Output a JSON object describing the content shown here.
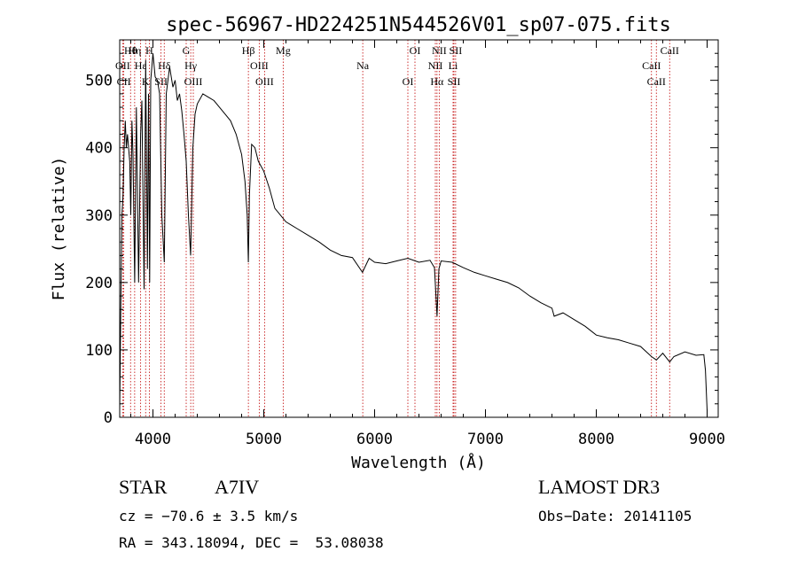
{
  "chart_data": {
    "type": "line",
    "title": "spec-56967-HD224251N544526V01_sp07-075.fits",
    "xlabel": "Wavelength (Å)",
    "ylabel": "Flux (relative)",
    "xlim": [
      3700,
      9100
    ],
    "ylim": [
      0,
      560
    ],
    "x_ticks": [
      4000,
      5000,
      6000,
      7000,
      8000,
      9000
    ],
    "y_ticks": [
      0,
      100,
      200,
      300,
      400,
      500
    ],
    "grid": false,
    "series": [
      {
        "name": "spectrum",
        "x": [
          3700,
          3710,
          3720,
          3730,
          3740,
          3750,
          3760,
          3770,
          3780,
          3790,
          3800,
          3810,
          3820,
          3835,
          3850,
          3870,
          3889,
          3900,
          3920,
          3934,
          3950,
          3960,
          3970,
          3980,
          4000,
          4020,
          4040,
          4060,
          4080,
          4102,
          4120,
          4150,
          4180,
          4200,
          4220,
          4240,
          4260,
          4280,
          4300,
          4320,
          4340,
          4360,
          4380,
          4400,
          4450,
          4500,
          4550,
          4600,
          4650,
          4700,
          4750,
          4800,
          4830,
          4850,
          4861,
          4870,
          4890,
          4920,
          4950,
          5000,
          5050,
          5100,
          5150,
          5200,
          5300,
          5400,
          5500,
          5600,
          5700,
          5800,
          5890,
          5950,
          6000,
          6100,
          6200,
          6300,
          6400,
          6500,
          6540,
          6563,
          6580,
          6600,
          6700,
          6800,
          6900,
          7000,
          7100,
          7200,
          7300,
          7400,
          7500,
          7600,
          7620,
          7700,
          7800,
          7900,
          8000,
          8100,
          8200,
          8300,
          8400,
          8498,
          8542,
          8600,
          8662,
          8700,
          8800,
          8900,
          8970,
          8985,
          9000
        ],
        "values": [
          10,
          170,
          300,
          330,
          400,
          440,
          400,
          420,
          400,
          380,
          300,
          440,
          390,
          200,
          460,
          200,
          420,
          470,
          190,
          530,
          220,
          480,
          200,
          500,
          540,
          505,
          500,
          480,
          300,
          230,
          480,
          520,
          490,
          500,
          470,
          480,
          455,
          420,
          380,
          300,
          240,
          400,
          450,
          465,
          480,
          475,
          470,
          460,
          450,
          440,
          420,
          390,
          350,
          300,
          230,
          330,
          405,
          400,
          380,
          365,
          340,
          310,
          300,
          290,
          280,
          270,
          260,
          248,
          240,
          237,
          215,
          236,
          230,
          228,
          232,
          236,
          230,
          233,
          222,
          150,
          220,
          232,
          230,
          222,
          215,
          210,
          205,
          200,
          192,
          180,
          170,
          162,
          150,
          155,
          145,
          135,
          122,
          118,
          115,
          110,
          105,
          90,
          85,
          95,
          82,
          90,
          97,
          92,
          93,
          70,
          10
        ]
      }
    ],
    "lines": [
      {
        "label": "Hθ",
        "wavelength": 3798
      },
      {
        "label": "OII",
        "wavelength": 3727
      },
      {
        "label": "CII",
        "wavelength": 3737
      },
      {
        "label": "Hη",
        "wavelength": 3835
      },
      {
        "label": "Hε",
        "wavelength": 3889
      },
      {
        "label": "K",
        "wavelength": 3934
      },
      {
        "label": "H",
        "wavelength": 3968
      },
      {
        "label": "Hδ",
        "wavelength": 4102
      },
      {
        "label": "SII",
        "wavelength": 4073
      },
      {
        "label": "G",
        "wavelength": 4300
      },
      {
        "label": "Hγ",
        "wavelength": 4341
      },
      {
        "label": "OIII",
        "wavelength": 4364
      },
      {
        "label": "Hβ",
        "wavelength": 4861
      },
      {
        "label": "OIII",
        "wavelength": 4959
      },
      {
        "label": "OIII",
        "wavelength": 5007
      },
      {
        "label": "Mg",
        "wavelength": 5175
      },
      {
        "label": "Na",
        "wavelength": 5893
      },
      {
        "label": "OI",
        "wavelength": 6300
      },
      {
        "label": "OI",
        "wavelength": 6364
      },
      {
        "label": "NII",
        "wavelength": 6548
      },
      {
        "label": "Hα",
        "wavelength": 6563
      },
      {
        "label": "NII",
        "wavelength": 6583
      },
      {
        "label": "Li",
        "wavelength": 6708
      },
      {
        "label": "SII",
        "wavelength": 6716
      },
      {
        "label": "SII",
        "wavelength": 6731
      },
      {
        "label": "CaII",
        "wavelength": 8498
      },
      {
        "label": "CaII",
        "wavelength": 8542
      },
      {
        "label": "CaII",
        "wavelength": 8662
      }
    ]
  },
  "info": {
    "object_type": "STAR",
    "subclass": "A7IV",
    "survey": "LAMOST DR3",
    "cz": "cz = −70.6 ± 3.5 km/s",
    "obs_date": "Obs−Date: 20141105",
    "coords": "RA = 343.18094, DEC =  53.08038"
  }
}
